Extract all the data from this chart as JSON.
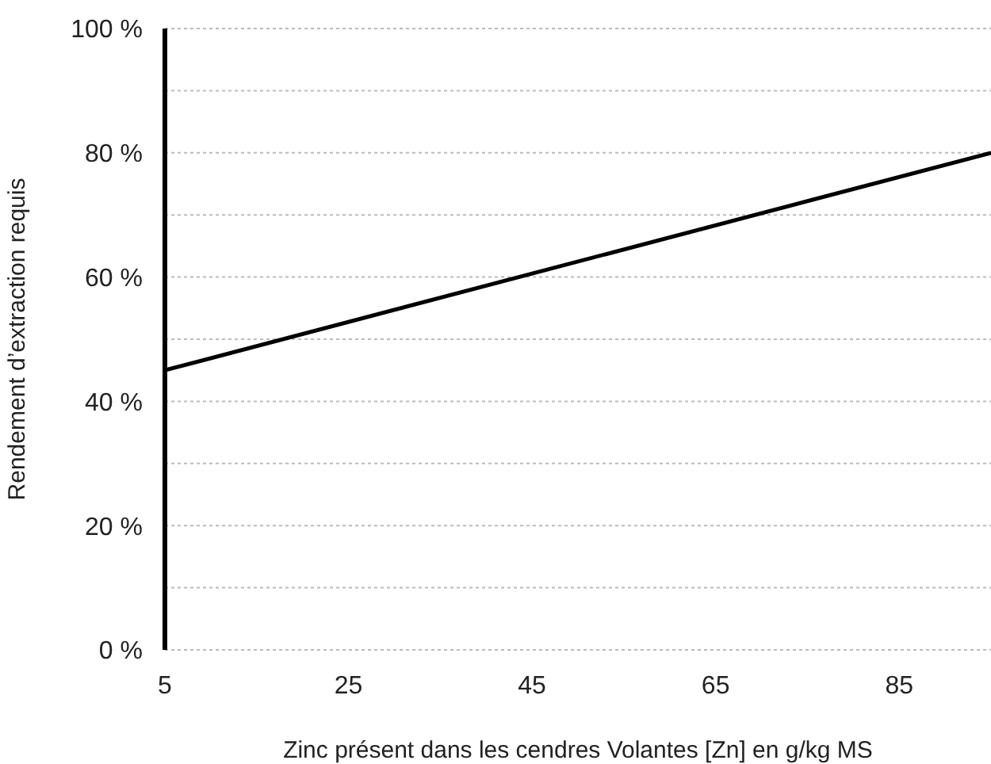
{
  "chart_data": {
    "type": "line",
    "xlabel": "Zinc présent dans les cendres Volantes [Zn] en g/kg MS",
    "ylabel": "Rendement d’extraction requis",
    "x": [
      5,
      95
    ],
    "series": [
      {
        "color": "#000000",
        "values": [
          45,
          80
        ]
      }
    ],
    "xlim": [
      5,
      95
    ],
    "xticks": [
      5,
      25,
      45,
      65,
      85
    ],
    "ylim": [
      0,
      100
    ],
    "yticks": [
      {
        "value": 0,
        "label": "0 %"
      },
      {
        "value": 10,
        "label": null
      },
      {
        "value": 20,
        "label": "20 %"
      },
      {
        "value": 30,
        "label": null
      },
      {
        "value": 40,
        "label": "40 %"
      },
      {
        "value": 50,
        "label": null
      },
      {
        "value": 60,
        "label": "60 %"
      },
      {
        "value": 70,
        "label": null
      },
      {
        "value": 80,
        "label": "80 %"
      },
      {
        "value": 90,
        "label": null
      },
      {
        "value": 100,
        "label": "100 %"
      }
    ],
    "grid": "y",
    "marker": "none",
    "line_style": "solid",
    "legend": false
  }
}
